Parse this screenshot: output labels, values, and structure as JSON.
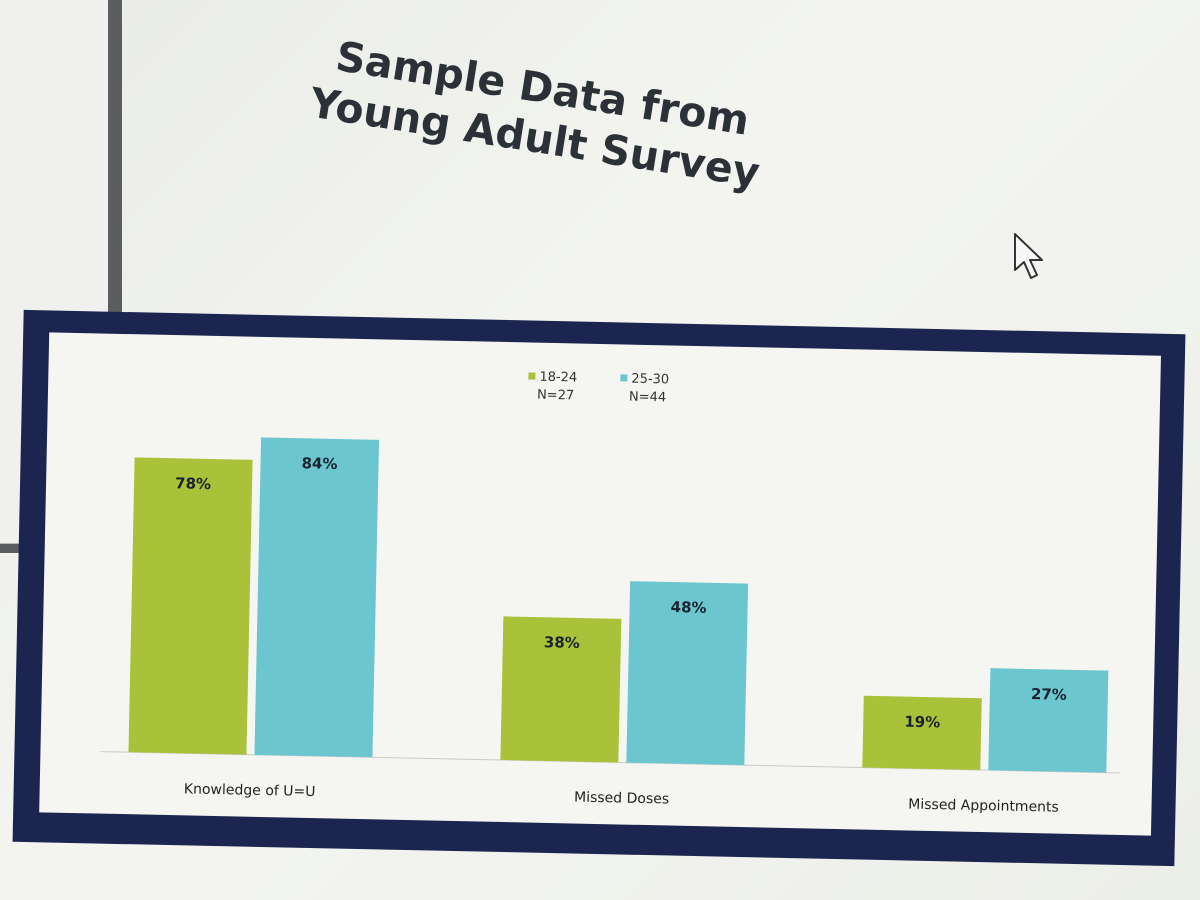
{
  "slide": {
    "title": "Sample Data from\nYoung Adult Survey"
  },
  "chart_data": {
    "type": "bar",
    "title": "",
    "categories": [
      "Knowledge of U=U",
      "Missed Doses",
      "Missed Appointments"
    ],
    "series": [
      {
        "name": "18-24",
        "sample": "N=27",
        "values": [
          78,
          38,
          19
        ],
        "labels": [
          "78%",
          "38%",
          "19%"
        ],
        "color": "#a9c23a"
      },
      {
        "name": "25-30",
        "sample": "N=44",
        "values": [
          84,
          48,
          27
        ],
        "labels": [
          "84%",
          "48%",
          "27%"
        ],
        "color": "#6cc6d0"
      }
    ],
    "ylim": [
      0,
      100
    ],
    "grid": false,
    "legend": "top-center",
    "data_labels": true
  }
}
